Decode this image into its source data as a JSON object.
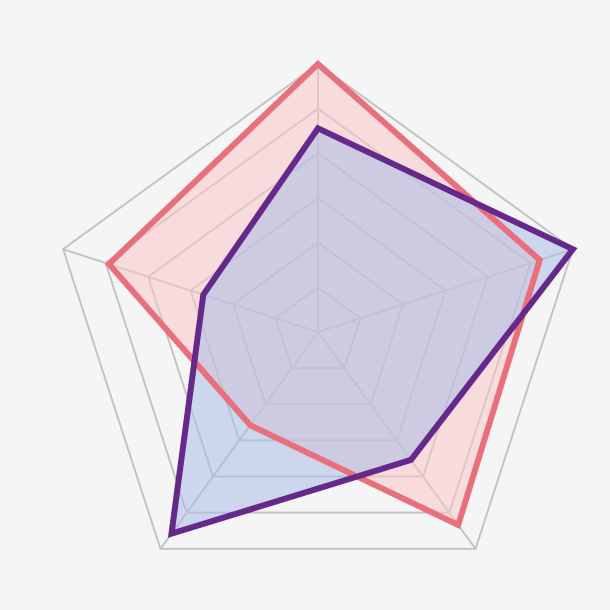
{
  "chart_data": {
    "type": "radar",
    "axes_count": 5,
    "rlim": [
      0,
      1
    ],
    "grid_rings": 6,
    "grid": true,
    "grid_color": "#c4c4c4",
    "series": [
      {
        "values": [
          1.0,
          0.87,
          0.89,
          0.43,
          0.82
        ],
        "stroke": "#e8707c",
        "fill": "#f9c6c8"
      },
      {
        "values": [
          0.76,
          1.0,
          0.59,
          0.93,
          0.45
        ],
        "stroke": "#66288a",
        "fill": "#a9bde6"
      }
    ]
  }
}
